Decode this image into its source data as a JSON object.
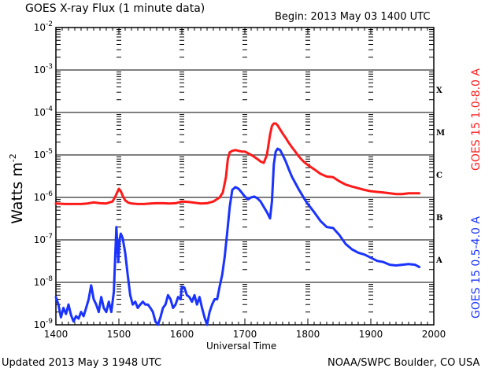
{
  "header": {
    "title": "GOES X-ray Flux (1 minute data)",
    "begin": "Begin: 2013 May 03 1400 UTC"
  },
  "footer": {
    "updated": "Updated 2013 May  3 1948 UTC",
    "credit": "NOAA/SWPC Boulder, CO USA"
  },
  "axes": {
    "xlabel": "Universal Time",
    "ylabel_base": "Watts m",
    "ylabel_exp": "-2",
    "right_label_red": "GOES 15 1.0-8.0 A",
    "right_label_blue": "GOES 15 0.5-4.0 A"
  },
  "colors": {
    "long_channel": "#ff1a1a",
    "short_channel": "#1a33ff",
    "grid": "#555555",
    "axis": "#000000"
  },
  "chart_data": {
    "type": "line",
    "title": "GOES X-ray Flux (1 minute data)",
    "subtitle": "Begin: 2013 May 03 1400 UTC",
    "xlabel": "Universal Time",
    "ylabel": "Watts m^-2",
    "yscale": "log",
    "xlim": [
      1400,
      2000
    ],
    "ylim": [
      1e-09,
      0.01
    ],
    "grid": true,
    "x_ticks": [
      "1400",
      "1500",
      "1600",
      "1700",
      "1800",
      "1900",
      "2000"
    ],
    "y_ticks": [
      "10^-9",
      "10^-8",
      "10^-7",
      "10^-6",
      "10^-5",
      "10^-4",
      "10^-3",
      "10^-2"
    ],
    "y_tick_base": "10",
    "y_tick_exps": [
      "-9",
      "-8",
      "-7",
      "-6",
      "-5",
      "-4",
      "-3",
      "-2"
    ],
    "flare_classes": [
      {
        "label": "X",
        "level": 0.0001
      },
      {
        "label": "M",
        "level": 1e-05
      },
      {
        "label": "C",
        "level": 1e-06
      },
      {
        "label": "B",
        "level": 1e-07
      },
      {
        "label": "A",
        "level": 1e-08
      }
    ],
    "legend": [
      "GOES 15 1.0-8.0 A",
      "GOES 15 0.5-4.0 A"
    ],
    "legend_position": "right (vertical text)",
    "series": [
      {
        "name": "GOES 15 1.0-8.0 A",
        "color": "#ff1a1a",
        "x_minutes_after_1400": [
          0,
          15,
          30,
          40,
          50,
          60,
          70,
          80,
          90,
          95,
          100,
          103,
          106,
          110,
          115,
          120,
          130,
          140,
          150,
          160,
          170,
          180,
          190,
          200,
          210,
          220,
          230,
          240,
          250,
          260,
          265,
          270,
          273,
          276,
          280,
          285,
          290,
          295,
          300,
          305,
          310,
          315,
          320,
          325,
          330,
          335,
          340,
          343,
          346,
          349,
          352,
          355,
          360,
          365,
          370,
          375,
          380,
          385,
          390,
          395,
          400,
          410,
          420,
          430,
          440,
          450,
          460,
          470,
          480,
          490,
          500,
          510,
          520,
          530,
          540,
          550,
          560,
          570,
          577
        ],
        "y_flux": [
          7.2e-07,
          7e-07,
          7e-07,
          7e-07,
          7.2e-07,
          7.6e-07,
          7.3e-07,
          7.2e-07,
          8e-07,
          1.1e-06,
          1.6e-06,
          1.4e-06,
          1.1e-06,
          8.5e-07,
          7.5e-07,
          7.2e-07,
          7e-07,
          7e-07,
          7.2e-07,
          7.3e-07,
          7.3e-07,
          7.2e-07,
          7.3e-07,
          8e-07,
          7.8e-07,
          7.5e-07,
          7.2e-07,
          7.3e-07,
          8e-07,
          1e-06,
          1.3e-06,
          3e-06,
          8e-06,
          1.15e-05,
          1.25e-05,
          1.3e-05,
          1.25e-05,
          1.2e-05,
          1.2e-05,
          1.1e-05,
          1e-05,
          9e-06,
          8e-06,
          7e-06,
          6.5e-06,
          1e-05,
          3e-05,
          4.8e-05,
          5.5e-05,
          5.5e-05,
          5e-05,
          4.2e-05,
          3.2e-05,
          2.5e-05,
          1.9e-05,
          1.5e-05,
          1.2e-05,
          9.5e-06,
          7.8e-06,
          6.6e-06,
          5.8e-06,
          4.6e-06,
          3.6e-06,
          3.1e-06,
          3e-06,
          2.4e-06,
          2e-06,
          1.8e-06,
          1.65e-06,
          1.5e-06,
          1.4e-06,
          1.35e-06,
          1.3e-06,
          1.25e-06,
          1.2e-06,
          1.2e-06,
          1.25e-06,
          1.25e-06,
          1.25e-06
        ]
      },
      {
        "name": "GOES 15 0.5-4.0 A",
        "color": "#1a33ff",
        "x_minutes_after_1400": [
          0,
          4,
          8,
          12,
          16,
          20,
          24,
          28,
          32,
          36,
          40,
          44,
          48,
          52,
          56,
          60,
          64,
          68,
          72,
          76,
          80,
          84,
          88,
          92,
          96,
          99,
          101,
          103,
          106,
          110,
          114,
          118,
          122,
          126,
          130,
          134,
          138,
          142,
          146,
          150,
          154,
          158,
          162,
          166,
          170,
          174,
          178,
          182,
          186,
          190,
          194,
          198,
          200,
          204,
          208,
          212,
          216,
          220,
          224,
          228,
          232,
          236,
          240,
          244,
          248,
          252,
          256,
          260,
          264,
          268,
          272,
          276,
          280,
          285,
          290,
          295,
          300,
          305,
          310,
          315,
          320,
          325,
          330,
          335,
          340,
          343,
          346,
          349,
          352,
          356,
          360,
          365,
          370,
          375,
          380,
          385,
          390,
          395,
          400,
          410,
          420,
          430,
          440,
          450,
          460,
          470,
          480,
          490,
          500,
          510,
          520,
          530,
          540,
          550,
          560,
          570,
          577
        ],
        "y_flux": [
          4.5e-09,
          3e-09,
          1.5e-09,
          2.5e-09,
          1.8e-09,
          3e-09,
          1.7e-09,
          1.2e-09,
          1.6e-09,
          1.4e-09,
          2e-09,
          1.6e-09,
          2.5e-09,
          4e-09,
          8.5e-09,
          4e-09,
          3e-09,
          2e-09,
          4.5e-09,
          2.5e-09,
          2e-09,
          3.5e-09,
          2e-09,
          6e-09,
          2e-07,
          3e-08,
          1e-07,
          1.4e-07,
          1.1e-07,
          5e-08,
          1.5e-08,
          5e-09,
          3e-09,
          3.5e-09,
          2.5e-09,
          3e-09,
          3.5e-09,
          3e-09,
          3e-09,
          2.5e-09,
          2e-09,
          1.2e-09,
          1e-09,
          1.5e-09,
          2.5e-09,
          3e-09,
          5e-09,
          4e-09,
          2.5e-09,
          3e-09,
          4.5e-09,
          4e-09,
          8e-09,
          7.5e-09,
          5e-09,
          4.5e-09,
          3.5e-09,
          5e-09,
          3e-09,
          4.5e-09,
          2.5e-09,
          1.5e-09,
          1e-09,
          2e-09,
          3e-09,
          4e-09,
          4e-09,
          8e-09,
          1.5e-08,
          4e-08,
          1.5e-07,
          6e-07,
          1.5e-06,
          1.75e-06,
          1.6e-06,
          1.3e-06,
          1.05e-06,
          9e-07,
          1e-06,
          1.05e-06,
          9.5e-07,
          8e-07,
          6e-07,
          4.5e-07,
          3.2e-07,
          8e-07,
          6e-06,
          1.2e-05,
          1.4e-05,
          1.3e-05,
          1e-05,
          7e-06,
          4.5e-06,
          3e-06,
          2.2e-06,
          1.6e-06,
          1.2e-06,
          9e-07,
          7e-07,
          4.5e-07,
          2.8e-07,
          2e-07,
          1.9e-07,
          1.3e-07,
          8e-08,
          6e-08,
          5e-08,
          4.5e-08,
          3.8e-08,
          3.2e-08,
          3e-08,
          2.6e-08,
          2.5e-08,
          2.6e-08,
          2.7e-08,
          2.6e-08,
          2.3e-08
        ]
      }
    ]
  }
}
